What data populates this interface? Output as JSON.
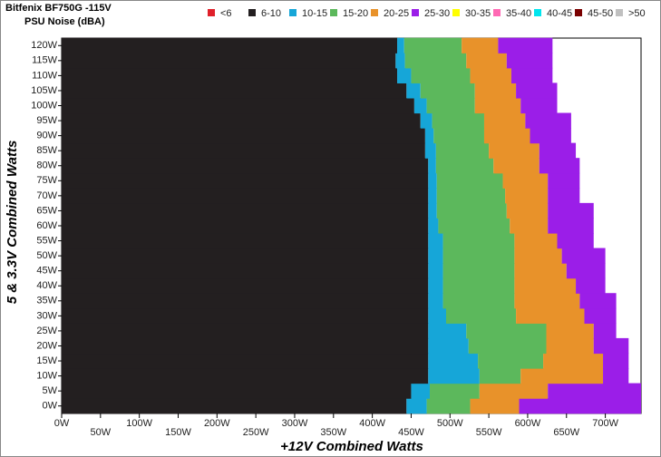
{
  "chart_data": {
    "type": "stacked-barh",
    "title": "Bitfenix BF750G -115V",
    "subtitle": "PSU Noise (dBA)",
    "x_label": "+12V Combined Watts",
    "y_label": "5 & 3.3V Combined Watts",
    "categories": [
      0,
      5,
      10,
      15,
      20,
      25,
      30,
      35,
      40,
      45,
      50,
      55,
      60,
      65,
      70,
      75,
      80,
      85,
      90,
      95,
      100,
      105,
      110,
      115,
      120
    ],
    "series": [
      {
        "name": "<6",
        "color": "#e0202a",
        "values": [
          0,
          0,
          0,
          0,
          0,
          0,
          0,
          0,
          0,
          0,
          0,
          0,
          0,
          0,
          0,
          0,
          0,
          0,
          0,
          0,
          0,
          0,
          0,
          0,
          0
        ]
      },
      {
        "name": "6-10",
        "color": "#231f20",
        "values": [
          444,
          450,
          472,
          472,
          472,
          472,
          472,
          472,
          472,
          472,
          472,
          472,
          472,
          472,
          472,
          472,
          472,
          468,
          468,
          462,
          454,
          444,
          432,
          430,
          432
        ]
      },
      {
        "name": "10-15",
        "color": "#16a6d8",
        "values": [
          26,
          24,
          66,
          64,
          52,
          49,
          23,
          19,
          19,
          19,
          19,
          19,
          13,
          11,
          11,
          11,
          10,
          14,
          11,
          15,
          16,
          18,
          18,
          12,
          9
        ]
      },
      {
        "name": "15-20",
        "color": "#5cb85c",
        "values": [
          56,
          64,
          53,
          84,
          100,
          103,
          90,
          92,
          92,
          92,
          92,
          92,
          92,
          90,
          88,
          85,
          74,
          68,
          65,
          67,
          62,
          70,
          76,
          79,
          74
        ]
      },
      {
        "name": "20-25",
        "color": "#e8922a",
        "values": [
          63,
          88,
          106,
          77,
          61,
          61,
          88,
          84,
          79,
          67,
          61,
          55,
          49,
          53,
          55,
          58,
          59,
          65,
          59,
          53,
          59,
          53,
          53,
          52,
          47
        ]
      },
      {
        "name": "25-30",
        "color": "#9b1ee8",
        "values": [
          157,
          120,
          33,
          33,
          45,
          29,
          41,
          47,
          38,
          50,
          56,
          47,
          59,
          59,
          41,
          41,
          52,
          47,
          53,
          59,
          47,
          53,
          53,
          59,
          70
        ]
      },
      {
        "name": "30-35",
        "color": "#ffff00",
        "values": [
          0,
          0,
          0,
          0,
          0,
          0,
          0,
          0,
          0,
          0,
          0,
          0,
          0,
          0,
          0,
          0,
          0,
          0,
          0,
          0,
          0,
          0,
          0,
          0,
          0
        ]
      },
      {
        "name": "35-40",
        "color": "#ff69b4",
        "values": [
          0,
          0,
          0,
          0,
          0,
          0,
          0,
          0,
          0,
          0,
          0,
          0,
          0,
          0,
          0,
          0,
          0,
          0,
          0,
          0,
          0,
          0,
          0,
          0,
          0
        ]
      },
      {
        "name": "40-45",
        "color": "#00e5ee",
        "values": [
          0,
          0,
          0,
          0,
          0,
          0,
          0,
          0,
          0,
          0,
          0,
          0,
          0,
          0,
          0,
          0,
          0,
          0,
          0,
          0,
          0,
          0,
          0,
          0,
          0
        ]
      },
      {
        "name": "45-50",
        "color": "#7a0000",
        "values": [
          0,
          0,
          0,
          0,
          0,
          0,
          0,
          0,
          0,
          0,
          0,
          0,
          0,
          0,
          0,
          0,
          0,
          0,
          0,
          0,
          0,
          0,
          0,
          0,
          0
        ]
      },
      {
        "name": ">50",
        "color": "#c0c0c0",
        "values": [
          0,
          0,
          0,
          0,
          0,
          0,
          0,
          0,
          0,
          0,
          0,
          0,
          0,
          0,
          0,
          0,
          0,
          0,
          0,
          0,
          0,
          0,
          0,
          0,
          0
        ]
      }
    ],
    "xlim": [
      0,
      746
    ],
    "ylim": [
      -2.5,
      122.5
    ],
    "xticks": [
      {
        "value": 0,
        "label": "0W"
      },
      {
        "value": 50,
        "label": "50W"
      },
      {
        "value": 100,
        "label": "100W"
      },
      {
        "value": 150,
        "label": "150W"
      },
      {
        "value": 200,
        "label": "200W"
      },
      {
        "value": 250,
        "label": "250W"
      },
      {
        "value": 300,
        "label": "300W"
      },
      {
        "value": 350,
        "label": "350W"
      },
      {
        "value": 400,
        "label": "400W"
      },
      {
        "value": 450,
        "label": "450W"
      },
      {
        "value": 500,
        "label": "500W"
      },
      {
        "value": 550,
        "label": "550W"
      },
      {
        "value": 600,
        "label": "600W"
      },
      {
        "value": 650,
        "label": "650W"
      },
      {
        "value": 700,
        "label": "700W"
      }
    ],
    "yticks": [
      {
        "value": 0,
        "label": "0W"
      },
      {
        "value": 5,
        "label": "5W"
      },
      {
        "value": 10,
        "label": "10W"
      },
      {
        "value": 15,
        "label": "15W"
      },
      {
        "value": 20,
        "label": "20W"
      },
      {
        "value": 25,
        "label": "25W"
      },
      {
        "value": 30,
        "label": "30W"
      },
      {
        "value": 35,
        "label": "35W"
      },
      {
        "value": 40,
        "label": "40W"
      },
      {
        "value": 45,
        "label": "45W"
      },
      {
        "value": 50,
        "label": "50W"
      },
      {
        "value": 55,
        "label": "55W"
      },
      {
        "value": 60,
        "label": "60W"
      },
      {
        "value": 65,
        "label": "65W"
      },
      {
        "value": 70,
        "label": "70W"
      },
      {
        "value": 75,
        "label": "75W"
      },
      {
        "value": 80,
        "label": "80W"
      },
      {
        "value": 85,
        "label": "85W"
      },
      {
        "value": 90,
        "label": "90W"
      },
      {
        "value": 95,
        "label": "95W"
      },
      {
        "value": 100,
        "label": "100W"
      },
      {
        "value": 105,
        "label": "105W"
      },
      {
        "value": 110,
        "label": "110W"
      },
      {
        "value": 115,
        "label": "115W"
      },
      {
        "value": 120,
        "label": "120W"
      }
    ]
  }
}
